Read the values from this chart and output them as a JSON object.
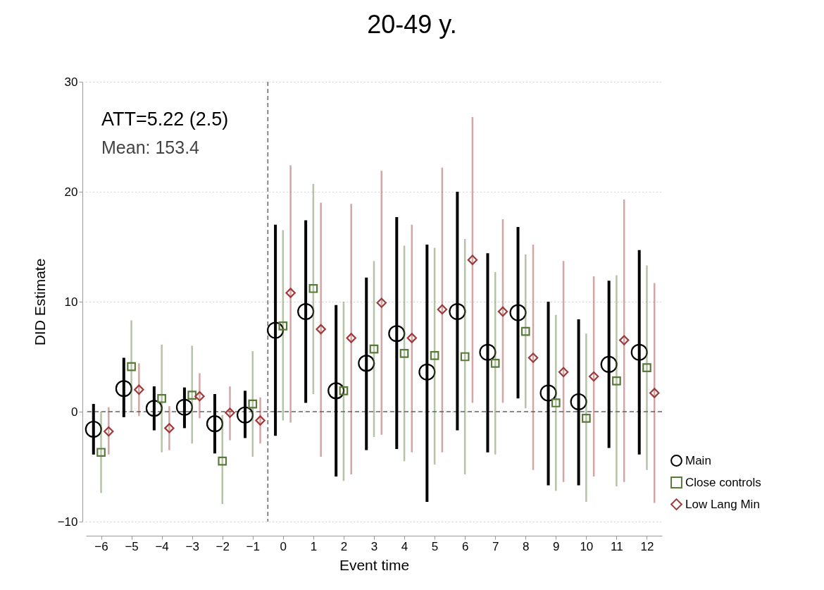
{
  "chart_data": {
    "type": "scatter",
    "title": "20-49 y.",
    "xlabel": "Event time",
    "ylabel": "DID Estimate",
    "x": [
      -6,
      -5,
      -4,
      -3,
      -2,
      -1,
      0,
      1,
      2,
      3,
      4,
      5,
      6,
      7,
      8,
      9,
      10,
      11,
      12
    ],
    "xlim": [
      -6.5,
      12.5
    ],
    "xticks": [
      -6,
      -5,
      -4,
      -3,
      -2,
      -1,
      0,
      1,
      2,
      3,
      4,
      5,
      6,
      7,
      8,
      9,
      10,
      11,
      12
    ],
    "ylim": [
      -10,
      30
    ],
    "yticks": [
      -10,
      0,
      10,
      20,
      30
    ],
    "grid": "y",
    "legend": "bottom right",
    "annotations": [
      "ATT=5.22 (2.5)",
      "Mean: 153.4"
    ],
    "ref_lines": [
      {
        "axis": "y",
        "value": 0,
        "line_style": "dashed",
        "color": "#666666"
      },
      {
        "axis": "x",
        "value": -0.5,
        "line_style": "dashed",
        "color": "#666666"
      }
    ],
    "series": [
      {
        "name": "Main",
        "color": "#000000",
        "marker": "circle",
        "x": [
          -6.25,
          -5.25,
          -4.25,
          -3.25,
          -2.25,
          -1.25,
          -0.25,
          0.75,
          1.75,
          2.75,
          3.75,
          4.75,
          5.75,
          6.75,
          7.75,
          8.75,
          9.75,
          10.75,
          11.75
        ],
        "values": [
          -1.6,
          2.1,
          0.3,
          0.4,
          -1.1,
          -0.3,
          7.4,
          9.1,
          1.9,
          4.4,
          7.1,
          3.6,
          9.1,
          5.4,
          9.0,
          1.7,
          0.9,
          4.3,
          5.4
        ],
        "errors": [
          [
            -3.9,
            0.7
          ],
          [
            -0.5,
            4.9
          ],
          [
            -1.7,
            2.3
          ],
          [
            -1.5,
            2.2
          ],
          [
            -3.8,
            1.6
          ],
          [
            -2.4,
            1.9
          ],
          [
            -2.2,
            17.0
          ],
          [
            0.8,
            17.4
          ],
          [
            -5.9,
            9.7
          ],
          [
            -3.5,
            12.2
          ],
          [
            -3.4,
            17.7
          ],
          [
            -8.2,
            15.2
          ],
          [
            -1.7,
            20.0
          ],
          [
            -3.7,
            14.4
          ],
          [
            1.2,
            16.8
          ],
          [
            -6.7,
            10.0
          ],
          [
            -6.7,
            8.4
          ],
          [
            -3.3,
            11.9
          ],
          [
            -3.9,
            14.7
          ]
        ]
      },
      {
        "name": "Close controls",
        "color": "#5a7a3a",
        "marker": "square",
        "values": [
          -3.7,
          4.1,
          1.2,
          1.5,
          -4.5,
          0.7,
          7.8,
          11.2,
          1.9,
          5.7,
          5.3,
          5.1,
          5.0,
          4.4,
          7.3,
          0.8,
          -0.6,
          2.8,
          4.0
        ],
        "errors": [
          [
            -7.4,
            0.0
          ],
          [
            0.0,
            8.3
          ],
          [
            -3.7,
            6.1
          ],
          [
            -2.9,
            6.0
          ],
          [
            -8.4,
            -0.3
          ],
          [
            -4.1,
            5.5
          ],
          [
            -0.8,
            16.5
          ],
          [
            1.6,
            20.7
          ],
          [
            -6.3,
            10.0
          ],
          [
            -2.3,
            13.7
          ],
          [
            -4.5,
            15.1
          ],
          [
            -4.8,
            14.9
          ],
          [
            -5.7,
            15.7
          ],
          [
            -3.9,
            12.7
          ],
          [
            0.3,
            14.3
          ],
          [
            -7.2,
            8.8
          ],
          [
            -8.2,
            7.1
          ],
          [
            -6.8,
            12.4
          ],
          [
            -5.3,
            13.3
          ]
        ]
      },
      {
        "name": "Low Lang Min",
        "color": "#9e3a3a",
        "marker": "diamond",
        "x": [
          -5.75,
          -4.75,
          -3.75,
          -2.75,
          -1.75,
          -0.75,
          0.25,
          1.25,
          2.25,
          3.25,
          4.25,
          5.25,
          6.25,
          7.25,
          8.25,
          9.25,
          10.25,
          11.25,
          12.25
        ],
        "values": [
          -1.8,
          2.0,
          -1.5,
          1.4,
          -0.1,
          -0.8,
          10.8,
          7.5,
          6.7,
          9.9,
          6.7,
          9.3,
          13.8,
          9.1,
          4.9,
          3.6,
          3.2,
          6.5,
          1.7
        ],
        "errors": [
          [
            -3.9,
            0.4
          ],
          [
            -0.4,
            4.4
          ],
          [
            -3.5,
            0.5
          ],
          [
            -0.6,
            3.5
          ],
          [
            -2.6,
            2.3
          ],
          [
            -2.9,
            1.3
          ],
          [
            -1.0,
            22.4
          ],
          [
            -4.1,
            19.0
          ],
          [
            -5.7,
            18.9
          ],
          [
            -2.1,
            21.9
          ],
          [
            -3.7,
            17.0
          ],
          [
            -3.7,
            22.2
          ],
          [
            0.8,
            26.8
          ],
          [
            0.8,
            17.5
          ],
          [
            -5.3,
            15.2
          ],
          [
            -6.4,
            13.7
          ],
          [
            -5.9,
            12.3
          ],
          [
            -6.4,
            19.3
          ],
          [
            -8.3,
            11.7
          ]
        ]
      }
    ]
  }
}
